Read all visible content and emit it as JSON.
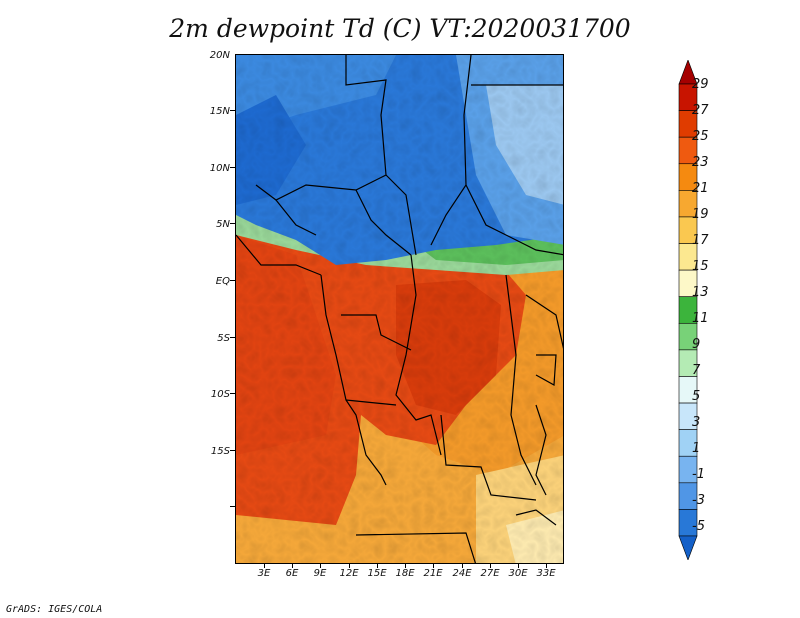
{
  "title": "2m dewpoint Td (C) VT:2020031700",
  "footer": "GrADS: IGES/COLA",
  "map": {
    "lat_labels": [
      "20N",
      "15N",
      "10N",
      "5N",
      "EQ",
      "5S",
      "10S",
      "15S"
    ],
    "lon_labels": [
      "3E",
      "6E",
      "9E",
      "12E",
      "15E",
      "18E",
      "21E",
      "24E",
      "27E",
      "30E",
      "33E"
    ]
  },
  "colorbar": {
    "levels": [
      "29",
      "27",
      "25",
      "23",
      "21",
      "19",
      "17",
      "15",
      "13",
      "11",
      "9",
      "7",
      "5",
      "3",
      "1",
      "-1",
      "-3",
      "-5"
    ],
    "colors": [
      "#a50000",
      "#c81400",
      "#e03c00",
      "#ef5a10",
      "#f58a10",
      "#f7a830",
      "#fac850",
      "#fce890",
      "#fdf8c8",
      "#3cb43c",
      "#78d278",
      "#b4ebb4",
      "#e6f8f8",
      "#c8e6fa",
      "#a0d2f5",
      "#78b4f0",
      "#5096e6",
      "#2878d7",
      "#1460c8"
    ]
  }
}
